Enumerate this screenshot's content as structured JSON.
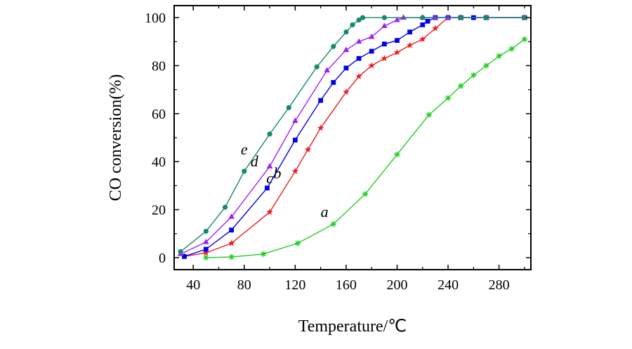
{
  "chart_data": {
    "type": "line",
    "title": "",
    "xlabel": "Temperature/℃",
    "ylabel": "CO conversion(%)",
    "xlim": [
      25,
      305
    ],
    "ylim": [
      -5,
      105
    ],
    "xticks": [
      40,
      80,
      120,
      160,
      200,
      240,
      280
    ],
    "yticks": [
      0,
      20,
      40,
      60,
      80,
      100
    ],
    "grid": false,
    "series": [
      {
        "name": "a",
        "color": "#22cc22",
        "marker": "asterisk",
        "points": [
          [
            50,
            0
          ],
          [
            70,
            0.3
          ],
          [
            95,
            1.5
          ],
          [
            122,
            6
          ],
          [
            150,
            14
          ],
          [
            175,
            26.5
          ],
          [
            200,
            43
          ],
          [
            225,
            59.5
          ],
          [
            240,
            66.5
          ],
          [
            250,
            71.5
          ],
          [
            260,
            76
          ],
          [
            270,
            80
          ],
          [
            280,
            84
          ],
          [
            290,
            87
          ],
          [
            300,
            91
          ]
        ]
      },
      {
        "name": "b",
        "color": "#ee1c24",
        "marker": "star",
        "points": [
          [
            33,
            0.5
          ],
          [
            50,
            2
          ],
          [
            70,
            6
          ],
          [
            100,
            19
          ],
          [
            120,
            36
          ],
          [
            130,
            45
          ],
          [
            140,
            54
          ],
          [
            160,
            69
          ],
          [
            170,
            75.5
          ],
          [
            180,
            80
          ],
          [
            190,
            83
          ],
          [
            200,
            85.5
          ],
          [
            210,
            88.5
          ],
          [
            220,
            91
          ],
          [
            230,
            95.5
          ],
          [
            240,
            100
          ],
          [
            250,
            100
          ],
          [
            270,
            100
          ],
          [
            300,
            100
          ]
        ]
      },
      {
        "name": "c",
        "color": "#0000ee",
        "marker": "square",
        "points": [
          [
            33,
            0.5
          ],
          [
            50,
            3.5
          ],
          [
            70,
            11.5
          ],
          [
            98,
            29
          ],
          [
            120,
            49
          ],
          [
            140,
            65.5
          ],
          [
            150,
            73
          ],
          [
            160,
            79
          ],
          [
            170,
            83
          ],
          [
            180,
            86
          ],
          [
            190,
            89
          ],
          [
            200,
            90.5
          ],
          [
            210,
            94
          ],
          [
            220,
            97
          ],
          [
            224,
            98.5
          ],
          [
            230,
            100
          ],
          [
            240,
            100
          ],
          [
            250,
            100
          ],
          [
            260,
            100
          ],
          [
            270,
            100
          ],
          [
            300,
            100
          ]
        ]
      },
      {
        "name": "d",
        "color": "#a020f0",
        "marker": "triangle",
        "points": [
          [
            30,
            1.5
          ],
          [
            50,
            6.5
          ],
          [
            70,
            17
          ],
          [
            100,
            38
          ],
          [
            120,
            57
          ],
          [
            145,
            78
          ],
          [
            160,
            86.5
          ],
          [
            170,
            90
          ],
          [
            180,
            92
          ],
          [
            190,
            96.5
          ],
          [
            200,
            99
          ],
          [
            205,
            100
          ],
          [
            220,
            100
          ],
          [
            230,
            100
          ],
          [
            240,
            100
          ],
          [
            250,
            100
          ],
          [
            270,
            100
          ],
          [
            300,
            100
          ]
        ]
      },
      {
        "name": "e",
        "color": "#138b6a",
        "marker": "circle",
        "points": [
          [
            30,
            2.5
          ],
          [
            50,
            11
          ],
          [
            65,
            21
          ],
          [
            80,
            36
          ],
          [
            100,
            51.5
          ],
          [
            115,
            62.5
          ],
          [
            137,
            79.5
          ],
          [
            150,
            88
          ],
          [
            160,
            94
          ],
          [
            165,
            97
          ],
          [
            170,
            99
          ],
          [
            173,
            100
          ],
          [
            190,
            100
          ],
          [
            220,
            100
          ],
          [
            250,
            100
          ],
          [
            270,
            100
          ],
          [
            300,
            100
          ]
        ]
      }
    ],
    "annotations": [
      {
        "text": "a",
        "series": "a",
        "x": 143,
        "y": 17
      },
      {
        "text": "b",
        "series": "b",
        "x": 106,
        "y": 33
      },
      {
        "text": "c",
        "series": "c",
        "x": 100,
        "y": 31
      },
      {
        "text": "d",
        "series": "d",
        "x": 88,
        "y": 38
      },
      {
        "text": "e",
        "series": "e",
        "x": 80,
        "y": 43
      }
    ]
  }
}
